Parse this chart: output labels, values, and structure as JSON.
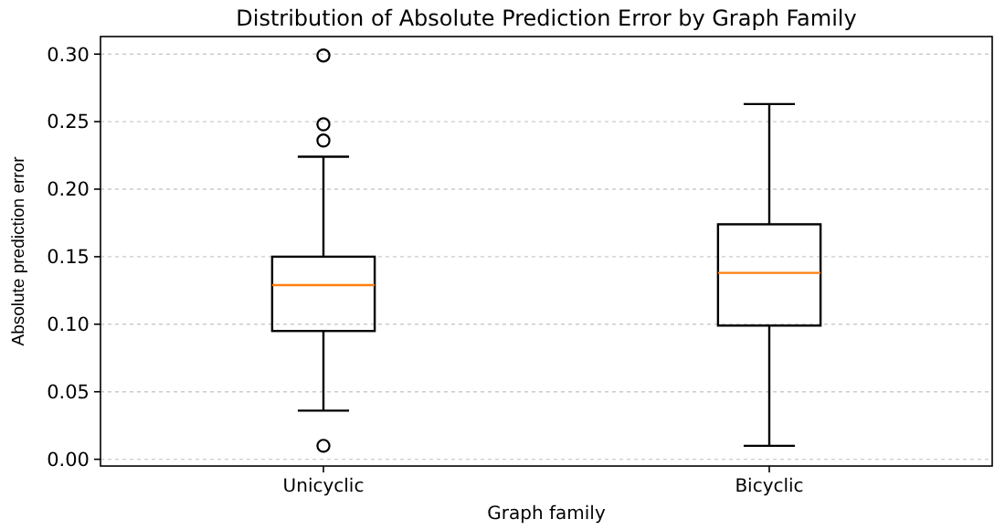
{
  "chart_data": {
    "type": "box",
    "title": "Distribution of Absolute Prediction Error by Graph Family",
    "xlabel": "Graph family",
    "ylabel": "Absolute prediction error",
    "categories": [
      "Unicyclic",
      "Bicyclic"
    ],
    "boxes": [
      {
        "low": 0.036,
        "q1": 0.095,
        "median": 0.129,
        "q3": 0.15,
        "high": 0.224,
        "outliers": [
          0.01,
          0.236,
          0.248,
          0.299
        ]
      },
      {
        "low": 0.01,
        "q1": 0.099,
        "median": 0.138,
        "q3": 0.174,
        "high": 0.263
      }
    ],
    "ylim": [
      -0.005,
      0.313
    ],
    "yticks": [
      {
        "value": 0,
        "label": "0.00"
      },
      {
        "value": 0.05,
        "label": "0.05"
      },
      {
        "value": 0.1,
        "label": "0.10"
      },
      {
        "value": 0.15,
        "label": "0.15"
      },
      {
        "value": 0.2,
        "label": "0.20"
      },
      {
        "value": 0.25,
        "label": "0.25"
      },
      {
        "value": 0.3,
        "label": "0.30"
      }
    ],
    "grid": "y"
  }
}
